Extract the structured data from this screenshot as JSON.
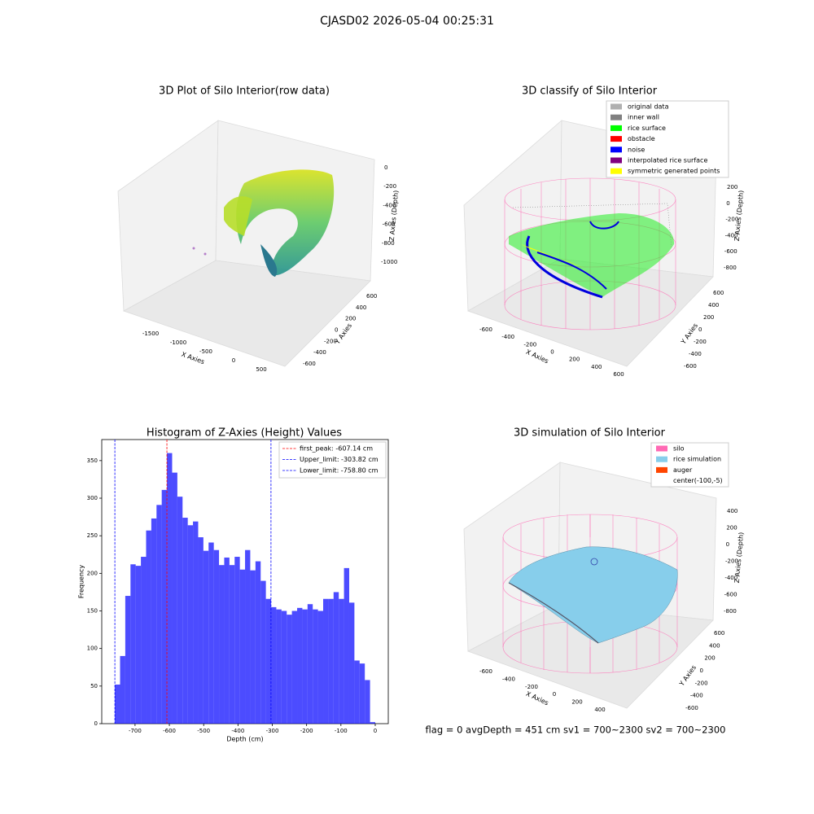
{
  "title": "CJASD02 2026-05-04 00:25:31",
  "footer": "flag = 0     avgDepth = 451 cm  sv1 = 700~2300  sv2 = 700~2300",
  "chart_data": [
    {
      "type": "scatter3d",
      "title": "3D Plot of Silo Interior(row data)",
      "xlabel": "X Axies",
      "ylabel": "Y Axies",
      "zlabel": "Z Axies (Depth)",
      "xticks": [
        -1500,
        -1000,
        -500,
        0,
        500
      ],
      "yticks": [
        -600,
        -400,
        -200,
        0,
        200,
        400,
        600
      ],
      "zticks": [
        0,
        -200,
        -400,
        -600,
        -800,
        -1000
      ]
    },
    {
      "type": "scatter3d",
      "title": "3D classify of Silo Interior",
      "xlabel": "X Axies",
      "ylabel": "Y Axies",
      "zlabel": "Z Axies (Depth)",
      "xticks": [
        -600,
        -400,
        -200,
        0,
        200,
        400,
        600
      ],
      "yticks": [
        -600,
        -400,
        -200,
        0,
        200,
        400,
        600
      ],
      "zticks": [
        200,
        0,
        -200,
        -400,
        -600,
        -800
      ],
      "legend": [
        {
          "name": "original data",
          "color": "#b0b0b0"
        },
        {
          "name": "inner wall",
          "color": "#808080"
        },
        {
          "name": "rice surface",
          "color": "#00ff00"
        },
        {
          "name": "obstacle",
          "color": "#ff0000"
        },
        {
          "name": "noise",
          "color": "#0000ff"
        },
        {
          "name": "interpolated rice surface",
          "color": "#800080"
        },
        {
          "name": "symmetric generated points",
          "color": "#ffff00"
        }
      ]
    },
    {
      "type": "histogram",
      "title": "Histogram of Z-Axies (Height) Values",
      "xlabel": "Depth (cm)",
      "ylabel": "Frequency",
      "color": "#0000ff",
      "bins": [
        -758.8,
        -743.624,
        -728.448,
        -713.272,
        -698.096,
        -682.92,
        -667.744,
        -652.568,
        -637.392,
        -622.216,
        -607.04,
        -591.864,
        -576.688,
        -561.512,
        -546.336,
        -531.16,
        -515.984,
        -500.808,
        -485.632,
        -470.456,
        -455.28,
        -440.104,
        -424.928,
        -409.752,
        -394.576,
        -379.4,
        -364.224,
        -349.048,
        -333.872,
        -318.696,
        -303.52,
        -288.344,
        -273.168,
        -257.992,
        -242.816,
        -227.64,
        -212.464,
        -197.288,
        -182.112,
        -166.936,
        -151.76,
        -136.584,
        -121.408,
        -106.232,
        -91.056,
        -75.88,
        -60.704,
        -45.528,
        -30.352,
        -15.176,
        0
      ],
      "values": [
        52,
        90,
        170,
        212,
        210,
        222,
        257,
        273,
        291,
        311,
        360,
        334,
        302,
        274,
        264,
        269,
        248,
        230,
        241,
        231,
        211,
        221,
        211,
        222,
        205,
        231,
        204,
        216,
        190,
        166,
        155,
        152,
        150,
        145,
        150,
        154,
        152,
        159,
        152,
        150,
        166,
        166,
        175,
        166,
        207,
        161,
        84,
        80,
        58,
        2
      ],
      "lines": [
        {
          "name": "first_peak: -607.14 cm",
          "value": -607.14,
          "color": "#ff0000"
        },
        {
          "name": "Upper_limit: -303.82 cm",
          "value": -303.82,
          "color": "#0000ff"
        },
        {
          "name": "Lower_limit: -758.80 cm",
          "value": -758.8,
          "color": "#0000ff"
        }
      ],
      "xlim": [
        -797,
        38
      ],
      "ylim": [
        0,
        378
      ],
      "xticks": [
        -700,
        -600,
        -500,
        -400,
        -300,
        -200,
        -100,
        0
      ],
      "yticks": [
        0,
        50,
        100,
        150,
        200,
        250,
        300,
        350
      ]
    },
    {
      "type": "surface3d",
      "title": "3D simulation of Silo Interior",
      "xlabel": "X Axies",
      "ylabel": "Y Axies",
      "zlabel": "Z Axies (Depth)",
      "xticks": [
        -600,
        -400,
        -200,
        0,
        200,
        400
      ],
      "yticks": [
        -600,
        -400,
        -200,
        0,
        200,
        400,
        600
      ],
      "zticks": [
        400,
        200,
        0,
        -200,
        -400,
        -600,
        -800
      ],
      "legend": [
        {
          "name": "silo",
          "color": "#ff69b4"
        },
        {
          "name": "rice simulation",
          "color": "#87ceeb"
        },
        {
          "name": "auger",
          "color": "#ff4500"
        },
        {
          "name": "center(-100,-5)"
        }
      ]
    }
  ]
}
